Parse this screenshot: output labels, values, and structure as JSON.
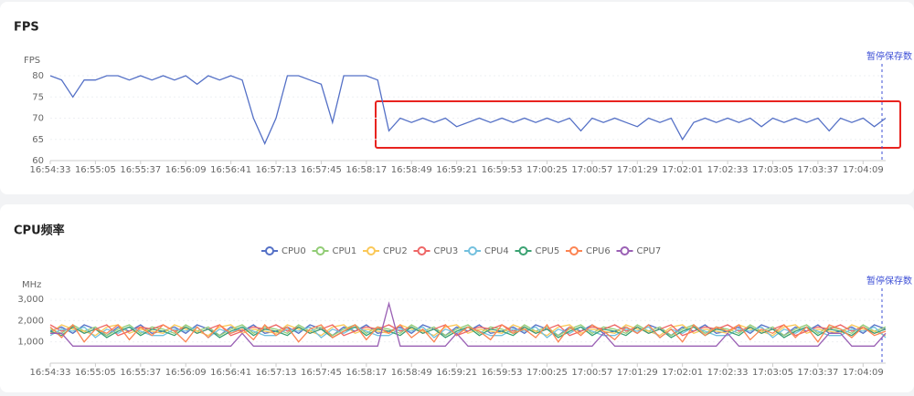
{
  "chart_data": [
    {
      "type": "line",
      "title": "FPS",
      "y_label": "FPS",
      "annotation": "暂停保存数",
      "color": "#5470c6",
      "categories": [
        "16:54:33",
        null,
        null,
        null,
        "16:55:05",
        null,
        null,
        null,
        "16:55:37",
        null,
        null,
        null,
        "16:56:09",
        null,
        null,
        null,
        "16:56:41",
        null,
        null,
        null,
        "16:57:13",
        null,
        null,
        null,
        "16:57:45",
        null,
        null,
        null,
        "16:58:17",
        null,
        null,
        null,
        "16:58:49",
        null,
        null,
        null,
        "16:59:21",
        null,
        null,
        null,
        "16:59:53",
        null,
        null,
        null,
        "17:00:25",
        null,
        null,
        null,
        "17:00:57",
        null,
        null,
        null,
        "17:01:29",
        null,
        null,
        null,
        "17:02:01",
        null,
        null,
        null,
        "17:02:33",
        null,
        null,
        null,
        "17:03:05",
        null,
        null,
        null,
        "17:03:37",
        null,
        null,
        null,
        "17:04:09",
        null,
        null
      ],
      "values": [
        80,
        79,
        75,
        79,
        79,
        80,
        80,
        79,
        80,
        79,
        80,
        79,
        80,
        78,
        80,
        79,
        80,
        79,
        70,
        64,
        70,
        80,
        80,
        79,
        78,
        69,
        80,
        80,
        80,
        79,
        67,
        70,
        69,
        70,
        69,
        70,
        68,
        69,
        70,
        69,
        70,
        69,
        70,
        69,
        70,
        69,
        70,
        67,
        70,
        69,
        70,
        69,
        68,
        70,
        69,
        70,
        65,
        69,
        70,
        69,
        70,
        69,
        70,
        68,
        70,
        69,
        70,
        69,
        70,
        67,
        70,
        69,
        70,
        68,
        70
      ],
      "ylim": [
        60,
        80
      ],
      "yticks": [
        60,
        65,
        70,
        75,
        80
      ],
      "grid": true
    },
    {
      "type": "line",
      "title": "CPU频率",
      "y_label": "MHz",
      "annotation": "暂停保存数",
      "legend": "top",
      "categories": [
        "16:54:33",
        null,
        null,
        null,
        "16:55:05",
        null,
        null,
        null,
        "16:55:37",
        null,
        null,
        null,
        "16:56:09",
        null,
        null,
        null,
        "16:56:41",
        null,
        null,
        null,
        "16:57:13",
        null,
        null,
        null,
        "16:57:45",
        null,
        null,
        null,
        "16:58:17",
        null,
        null,
        null,
        "16:58:49",
        null,
        null,
        null,
        "16:59:21",
        null,
        null,
        null,
        "16:59:53",
        null,
        null,
        null,
        "17:00:25",
        null,
        null,
        null,
        "17:00:57",
        null,
        null,
        null,
        "17:01:29",
        null,
        null,
        null,
        "17:02:01",
        null,
        null,
        null,
        "17:02:33",
        null,
        null,
        null,
        "17:03:05",
        null,
        null,
        null,
        "17:03:37",
        null,
        null,
        null,
        "17:04:09",
        null,
        null
      ],
      "ylim": [
        0,
        3000
      ],
      "yticks": [
        {
          "value": 1000,
          "label": "1,000"
        },
        {
          "value": 2000,
          "label": "2,000"
        },
        {
          "value": 3000,
          "label": "3,000"
        }
      ],
      "grid": true,
      "series": [
        {
          "name": "CPU0",
          "color": "#5470c6",
          "values": [
            1500,
            1700,
            1400,
            1800,
            1600,
            1300,
            1700,
            1500,
            1800,
            1400,
            1500,
            1700,
            1400,
            1800,
            1600,
            1300,
            1700,
            1500,
            1800,
            1400,
            1500,
            1700,
            1400,
            1800,
            1600,
            1300,
            1700,
            1500,
            1800,
            1400,
            1500,
            1700,
            1400,
            1800,
            1600,
            1300,
            1700,
            1500,
            1800,
            1400,
            1500,
            1700,
            1400,
            1800,
            1600,
            1300,
            1700,
            1500,
            1800,
            1400,
            1500,
            1700,
            1400,
            1800,
            1600,
            1300,
            1700,
            1500,
            1800,
            1400,
            1500,
            1700,
            1400,
            1800,
            1600,
            1300,
            1700,
            1500,
            1800,
            1400,
            1500,
            1700,
            1400,
            1800,
            1600
          ]
        },
        {
          "name": "CPU1",
          "color": "#91cc75",
          "values": [
            1600,
            1400,
            1800,
            1500,
            1700,
            1300,
            1600,
            1800,
            1400,
            1700,
            1600,
            1400,
            1800,
            1500,
            1700,
            1300,
            1600,
            1800,
            1400,
            1700,
            1600,
            1400,
            1800,
            1500,
            1700,
            1300,
            1600,
            1800,
            1400,
            1700,
            1600,
            1400,
            1800,
            1500,
            1700,
            1300,
            1600,
            1800,
            1400,
            1700,
            1600,
            1400,
            1800,
            1500,
            1700,
            1300,
            1600,
            1800,
            1400,
            1700,
            1600,
            1400,
            1800,
            1500,
            1700,
            1300,
            1600,
            1800,
            1400,
            1700,
            1600,
            1400,
            1800,
            1500,
            1700,
            1300,
            1600,
            1800,
            1400,
            1700,
            1600,
            1400,
            1800,
            1500,
            1700
          ]
        },
        {
          "name": "CPU2",
          "color": "#fac858",
          "values": [
            1400,
            1800,
            1600,
            1500,
            1300,
            1700,
            1800,
            1400,
            1600,
            1500,
            1400,
            1800,
            1600,
            1500,
            1300,
            1700,
            1800,
            1400,
            1600,
            1500,
            1400,
            1800,
            1600,
            1500,
            1300,
            1700,
            1800,
            1400,
            1600,
            1500,
            1400,
            1800,
            1600,
            1500,
            1300,
            1700,
            1800,
            1400,
            1600,
            1500,
            1400,
            1800,
            1600,
            1500,
            1300,
            1700,
            1800,
            1400,
            1600,
            1500,
            1400,
            1800,
            1600,
            1500,
            1300,
            1700,
            1800,
            1400,
            1600,
            1500,
            1400,
            1800,
            1600,
            1500,
            1300,
            1700,
            1800,
            1400,
            1600,
            1500,
            1400,
            1800,
            1600,
            1500,
            1300
          ]
        },
        {
          "name": "CPU3",
          "color": "#ee6666",
          "values": [
            1800,
            1500,
            1700,
            1400,
            1600,
            1800,
            1300,
            1500,
            1700,
            1600,
            1800,
            1500,
            1700,
            1400,
            1600,
            1800,
            1300,
            1500,
            1700,
            1600,
            1800,
            1500,
            1700,
            1400,
            1600,
            1800,
            1300,
            1500,
            1700,
            1600,
            1800,
            1500,
            1700,
            1400,
            1600,
            1800,
            1300,
            1500,
            1700,
            1600,
            1800,
            1500,
            1700,
            1400,
            1600,
            1800,
            1300,
            1500,
            1700,
            1600,
            1800,
            1500,
            1700,
            1400,
            1600,
            1800,
            1300,
            1500,
            1700,
            1600,
            1800,
            1500,
            1700,
            1400,
            1600,
            1800,
            1300,
            1500,
            1700,
            1600,
            1800,
            1500,
            1700,
            1400,
            1600
          ]
        },
        {
          "name": "CPU4",
          "color": "#73c0de",
          "values": [
            1300,
            1600,
            1500,
            1700,
            1200,
            1600,
            1400,
            1700,
            1500,
            1300,
            1300,
            1600,
            1500,
            1700,
            1200,
            1600,
            1400,
            1700,
            1500,
            1300,
            1300,
            1600,
            1500,
            1700,
            1200,
            1600,
            1400,
            1700,
            1500,
            1300,
            1300,
            1600,
            1500,
            1700,
            1200,
            1600,
            1400,
            1700,
            1500,
            1300,
            1300,
            1600,
            1500,
            1700,
            1200,
            1600,
            1400,
            1700,
            1500,
            1300,
            1300,
            1600,
            1500,
            1700,
            1200,
            1600,
            1400,
            1700,
            1500,
            1300,
            1300,
            1600,
            1500,
            1700,
            1200,
            1600,
            1400,
            1700,
            1500,
            1300,
            1300,
            1600,
            1500,
            1700,
            1200
          ]
        },
        {
          "name": "CPU5",
          "color": "#3ba272",
          "values": [
            1500,
            1300,
            1700,
            1400,
            1600,
            1200,
            1500,
            1700,
            1300,
            1600,
            1500,
            1300,
            1700,
            1400,
            1600,
            1200,
            1500,
            1700,
            1300,
            1600,
            1500,
            1300,
            1700,
            1400,
            1600,
            1200,
            1500,
            1700,
            1300,
            1600,
            1500,
            1300,
            1700,
            1400,
            1600,
            1200,
            1500,
            1700,
            1300,
            1600,
            1500,
            1300,
            1700,
            1400,
            1600,
            1200,
            1500,
            1700,
            1300,
            1600,
            1500,
            1300,
            1700,
            1400,
            1600,
            1200,
            1500,
            1700,
            1300,
            1600,
            1500,
            1300,
            1700,
            1400,
            1600,
            1200,
            1500,
            1700,
            1300,
            1600,
            1500,
            1300,
            1700,
            1400,
            1600
          ]
        },
        {
          "name": "CPU6",
          "color": "#fc8452",
          "values": [
            1700,
            1200,
            1800,
            1000,
            1600,
            1400,
            1800,
            1100,
            1700,
            1300,
            1800,
            1500,
            1000,
            1700,
            1200,
            1800,
            1400,
            1600,
            1100,
            1800,
            1300,
            1700,
            1000,
            1600,
            1800,
            1200,
            1500,
            1800,
            1100,
            1700,
            1400,
            1800,
            1200,
            1600,
            1000,
            1800,
            1300,
            1700,
            1500,
            1100,
            1800,
            1400,
            1600,
            1200,
            1800,
            1000,
            1700,
            1300,
            1800,
            1500,
            1100,
            1700,
            1400,
            1800,
            1200,
            1600,
            1000,
            1800,
            1300,
            1700,
            1500,
            1800,
            1100,
            1600,
            1400,
            1800,
            1200,
            1700,
            1000,
            1800,
            1600,
            1200,
            1700,
            1300,
            1500
          ]
        },
        {
          "name": "CPU7",
          "color": "#9a60b4",
          "values": [
            1400,
            1400,
            800,
            800,
            800,
            800,
            800,
            800,
            800,
            800,
            800,
            800,
            800,
            800,
            800,
            800,
            800,
            1400,
            800,
            800,
            800,
            800,
            800,
            800,
            800,
            800,
            800,
            800,
            800,
            800,
            2800,
            800,
            800,
            800,
            800,
            800,
            1400,
            800,
            800,
            800,
            800,
            800,
            800,
            800,
            800,
            800,
            800,
            800,
            800,
            1400,
            800,
            800,
            800,
            800,
            800,
            800,
            800,
            800,
            800,
            800,
            1400,
            800,
            800,
            800,
            800,
            800,
            800,
            800,
            800,
            1400,
            1400,
            800,
            800,
            800,
            1400
          ]
        }
      ]
    }
  ]
}
